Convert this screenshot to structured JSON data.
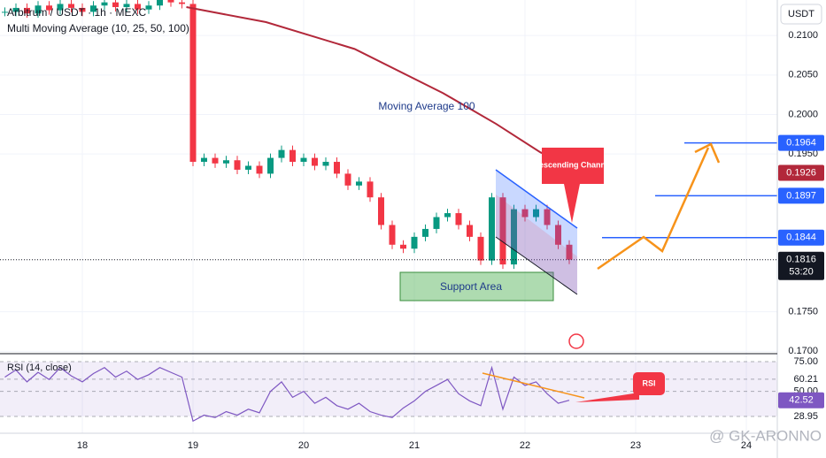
{
  "header": {
    "title": "Arbitrum / USDT · 1h · MEXC",
    "indicator": "Multi Moving Average (10, 25, 50, 100)",
    "currency": "USDT"
  },
  "chart_data": [
    {
      "type": "candlestick",
      "xlim": [
        17.256,
        24.28
      ],
      "xticks": [
        18,
        19,
        20,
        21,
        22,
        23,
        24
      ],
      "ylim": [
        0.1697,
        0.2145
      ],
      "yticks": [
        {
          "value": 0.21,
          "label": "0.2100"
        },
        {
          "value": 0.205,
          "label": "0.2050"
        },
        {
          "value": 0.2,
          "label": "0.2000"
        },
        {
          "value": 0.195,
          "label": "0.1950"
        },
        {
          "value": 0.175,
          "label": "0.1750"
        },
        {
          "value": 0.17,
          "label": "0.1700"
        }
      ],
      "x": [
        17.3,
        17.4,
        17.5,
        17.6,
        17.7,
        17.8,
        17.9,
        18.0,
        18.1,
        18.2,
        18.3,
        18.4,
        18.5,
        18.6,
        18.7,
        18.8,
        18.9,
        19.0,
        19.1,
        19.2,
        19.3,
        19.4,
        19.5,
        19.6,
        19.7,
        19.8,
        19.9,
        20.0,
        20.1,
        20.2,
        20.3,
        20.4,
        20.5,
        20.6,
        20.7,
        20.8,
        20.9,
        21.0,
        21.1,
        21.2,
        21.3,
        21.4,
        21.5,
        21.6,
        21.7,
        21.8,
        21.9,
        22.0,
        22.1,
        22.2,
        22.3,
        22.4
      ],
      "values": [
        0.213,
        0.2135,
        0.2128,
        0.2138,
        0.2132,
        0.214,
        0.2135,
        0.213,
        0.2138,
        0.2142,
        0.2136,
        0.214,
        0.2133,
        0.2138,
        0.2145,
        0.2142,
        0.214,
        0.194,
        0.1945,
        0.1938,
        0.1942,
        0.193,
        0.1935,
        0.1925,
        0.1945,
        0.1955,
        0.194,
        0.1945,
        0.1935,
        0.194,
        0.1925,
        0.191,
        0.1915,
        0.1895,
        0.186,
        0.1835,
        0.183,
        0.1845,
        0.1855,
        0.187,
        0.1875,
        0.186,
        0.1845,
        0.1815,
        0.1895,
        0.181,
        0.188,
        0.187,
        0.188,
        0.186,
        0.1835,
        0.1816
      ],
      "up_color": "#089981",
      "down_color": "#f23645",
      "series": [
        {
          "name": "Moving Average 100",
          "color": "#b2283a",
          "x": [
            18.94,
            19.66,
            20.46,
            21.26,
            21.74,
            22.14,
            22.46
          ],
          "values": [
            0.2136,
            0.2117,
            0.2083,
            0.2027,
            0.1988,
            0.1952,
            0.1932
          ]
        }
      ],
      "price_labels": [
        {
          "value": 0.1964,
          "label": "0.1964",
          "color": "#2962ff"
        },
        {
          "value": 0.1926,
          "label": "0.1926",
          "color": "#b2283a"
        },
        {
          "value": 0.1897,
          "label": "0.1897",
          "color": "#2962ff"
        },
        {
          "value": 0.1844,
          "label": "0.1844",
          "color": "#2962ff"
        }
      ],
      "last_price": {
        "value": 0.1816,
        "label": "0.1816",
        "countdown": "53:20"
      }
    },
    {
      "type": "line",
      "title": "RSI (14, close)",
      "ylim": [
        14.8,
        81.7
      ],
      "yticks": [
        {
          "value": 75,
          "label": "75.00"
        },
        {
          "value": 60.21,
          "label": "60.21"
        },
        {
          "value": 50,
          "label": "50.00"
        },
        {
          "value": 28.95,
          "label": "28.95"
        }
      ],
      "values": [
        62,
        68,
        58,
        66,
        60,
        70,
        63,
        58,
        65,
        70,
        62,
        67,
        60,
        64,
        70,
        66,
        62,
        25,
        30,
        28,
        33,
        30,
        35,
        32,
        50,
        58,
        45,
        50,
        40,
        45,
        38,
        35,
        40,
        33,
        30,
        28,
        36,
        42,
        50,
        55,
        60,
        48,
        42,
        38,
        70,
        35,
        62,
        55,
        58,
        48,
        40,
        42.52
      ],
      "color": "#7e57c2",
      "last": {
        "value": 42.52,
        "label": "42.52"
      }
    }
  ],
  "annotations": {
    "channel": "Descending Channel",
    "support": "Support Area",
    "rsi": "RSI"
  },
  "watermark": "@ GK-ARONNO"
}
